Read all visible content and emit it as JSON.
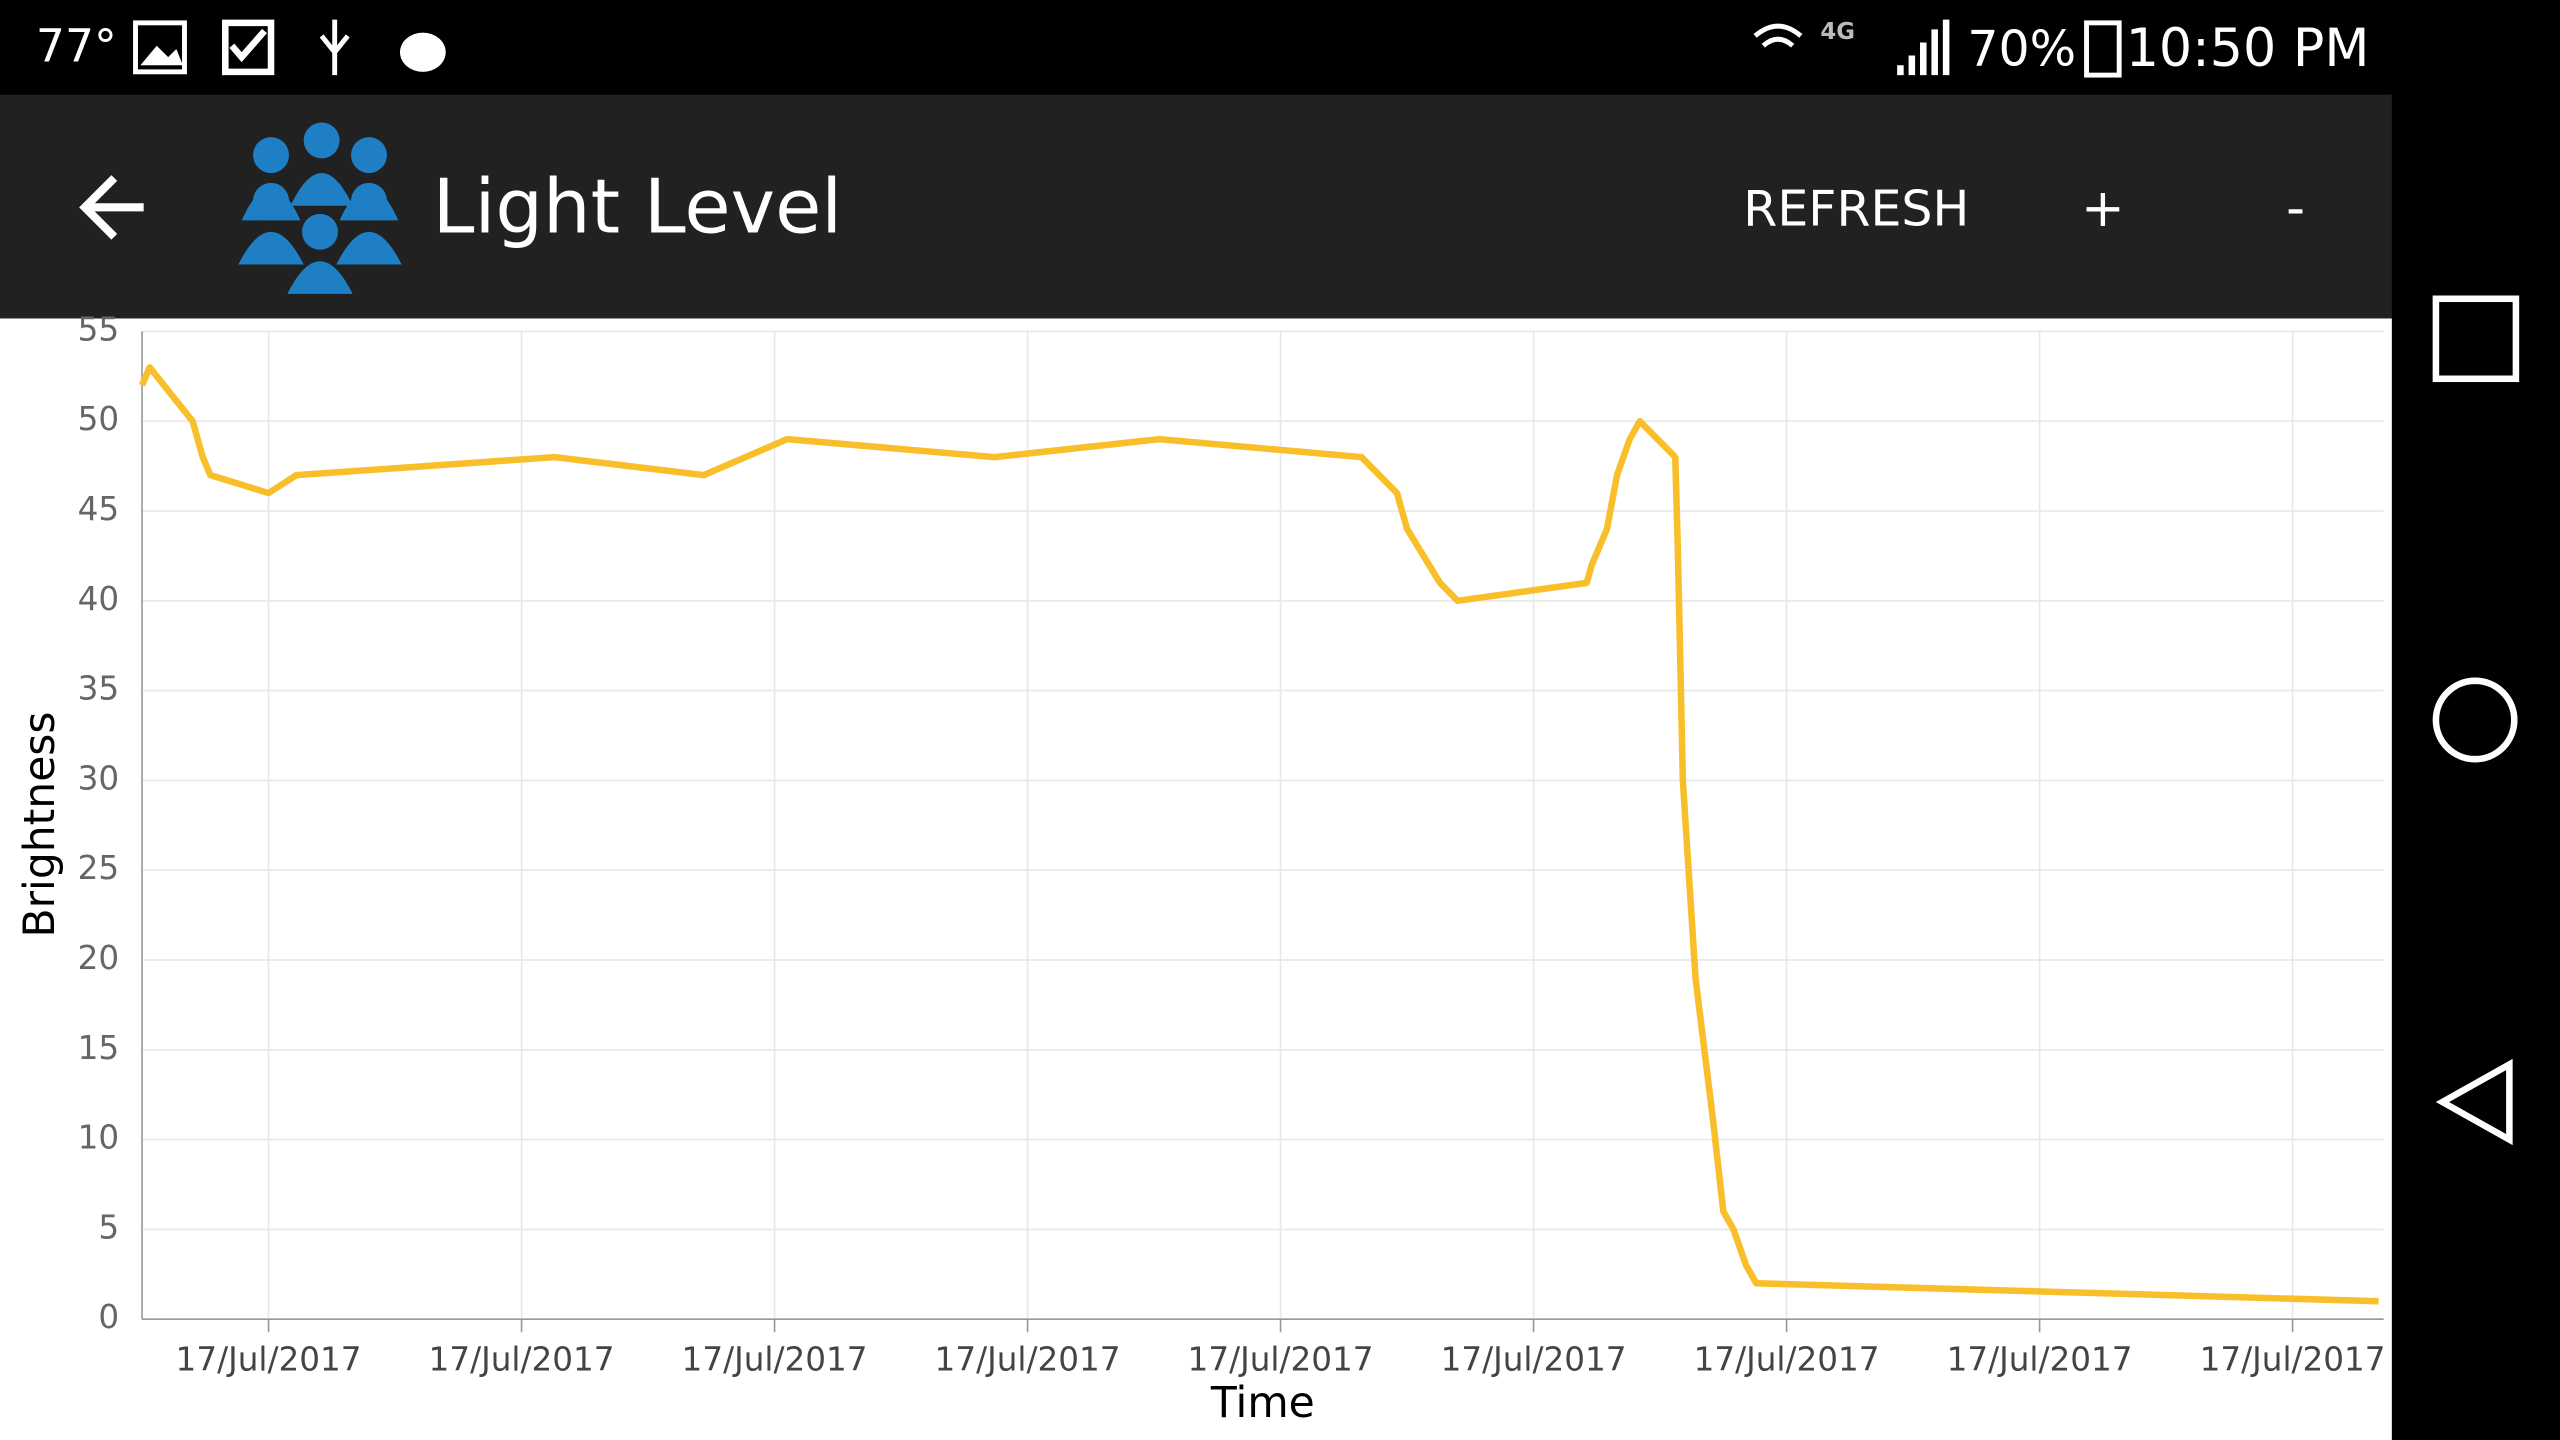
{
  "status_bar": {
    "temperature": "77°",
    "network": "4G",
    "battery": "70%",
    "time": "10:50 PM"
  },
  "app_bar": {
    "title": "Light Level",
    "actions": [
      "REFRESH",
      "+",
      "-"
    ]
  },
  "chart_data": {
    "type": "line",
    "x_label": "Time",
    "y_label": "Brightness",
    "x": [
      0.5,
      0.53,
      0.7,
      0.74,
      0.77,
      1.0,
      1.11,
      2.13,
      2.72,
      3.05,
      3.87,
      4.52,
      5.32,
      5.46,
      5.5,
      5.63,
      5.7,
      6.21,
      6.23,
      6.29,
      6.33,
      6.38,
      6.42,
      6.56,
      6.57,
      6.59,
      6.64,
      6.71,
      6.75,
      6.79,
      6.84,
      6.88,
      9.34
    ],
    "series": [
      {
        "name": "Brightness",
        "color": "#f9bf2a",
        "values": [
          52,
          53,
          50,
          48,
          47,
          46,
          47,
          48,
          47,
          49,
          48,
          49,
          48,
          46,
          44,
          41,
          40,
          41,
          42,
          44,
          47,
          49,
          50,
          48,
          43,
          30,
          19,
          11,
          6,
          5,
          3,
          2,
          1
        ]
      }
    ],
    "xlim": [
      0.5,
      9.36
    ],
    "xticks": [
      {
        "value": 1,
        "label": "17/Jul/2017"
      },
      {
        "value": 2,
        "label": "17/Jul/2017"
      },
      {
        "value": 3,
        "label": "17/Jul/2017"
      },
      {
        "value": 4,
        "label": "17/Jul/2017"
      },
      {
        "value": 5,
        "label": "17/Jul/2017"
      },
      {
        "value": 6,
        "label": "17/Jul/2017"
      },
      {
        "value": 7,
        "label": "17/Jul/2017"
      },
      {
        "value": 8,
        "label": "17/Jul/2017"
      },
      {
        "value": 9,
        "label": "17/Jul/2017"
      }
    ],
    "ylim": [
      0,
      55
    ],
    "yticks": [
      0,
      5,
      10,
      15,
      20,
      25,
      30,
      35,
      40,
      45,
      50,
      55
    ],
    "grid": true
  }
}
